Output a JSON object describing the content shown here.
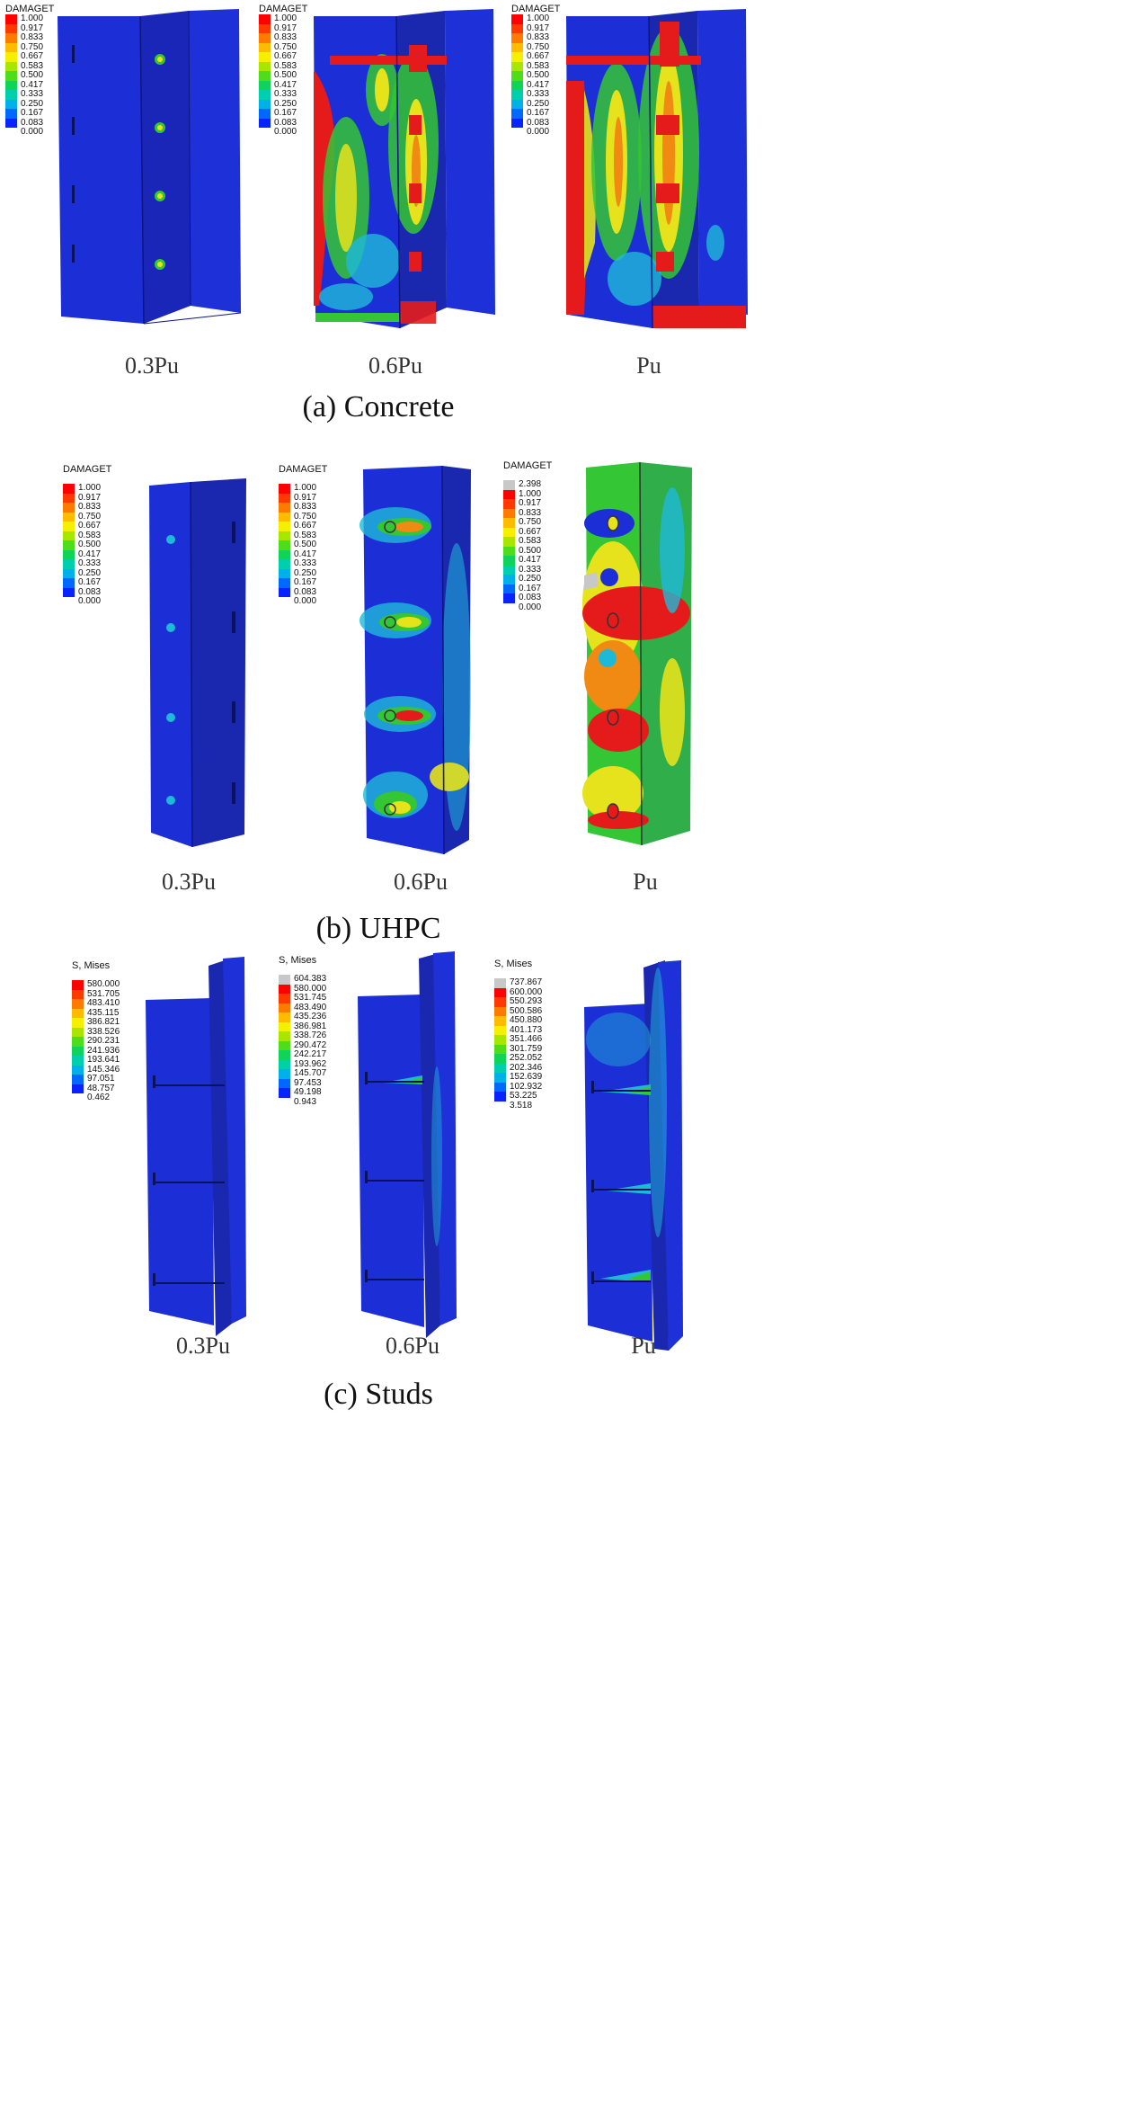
{
  "colors": {
    "blue": "#1c2fd6",
    "blue_dark": "#1a26b8",
    "blue_side": "#1a28b0",
    "cyan": "#1fb9d8",
    "green": "#34c634",
    "yellow": "#e6e21c",
    "orange": "#f08a12",
    "red": "#e51b1b",
    "grey": "#c8c8c8"
  },
  "legend_colors": [
    "#ff0000",
    "#ff3a00",
    "#ff7b00",
    "#ffbb00",
    "#f4f000",
    "#a8e600",
    "#4fdc1a",
    "#10d35a",
    "#00cfae",
    "#00b0e8",
    "#0068ff",
    "#0a22ff"
  ],
  "legend_colors_ext": [
    "#c8c8c8",
    "#ff0000",
    "#ff3a00",
    "#ff7b00",
    "#ffbb00",
    "#f4f000",
    "#a8e600",
    "#4fdc1a",
    "#10d35a",
    "#00cfae",
    "#00b0e8",
    "#0068ff",
    "#0a22ff"
  ],
  "sections": {
    "a": {
      "caption": "(a) Concrete",
      "legend_title": "DAMAGET",
      "legend_values": [
        "1.000",
        "0.917",
        "0.833",
        "0.750",
        "0.667",
        "0.583",
        "0.500",
        "0.417",
        "0.333",
        "0.250",
        "0.167",
        "0.083",
        "0.000"
      ],
      "loads": [
        "0.3Pu",
        "0.6Pu",
        "Pu"
      ]
    },
    "b": {
      "caption": "(b) UHPC",
      "legend_title": "DAMAGET",
      "legend_values": [
        "1.000",
        "0.917",
        "0.833",
        "0.750",
        "0.667",
        "0.583",
        "0.500",
        "0.417",
        "0.333",
        "0.250",
        "0.167",
        "0.083",
        "0.000"
      ],
      "legend_values_ext": [
        "2.398",
        "1.000",
        "0.917",
        "0.833",
        "0.750",
        "0.667",
        "0.583",
        "0.500",
        "0.417",
        "0.333",
        "0.250",
        "0.167",
        "0.083",
        "0.000"
      ],
      "loads": [
        "0.3Pu",
        "0.6Pu",
        "Pu"
      ]
    },
    "c": {
      "caption": "(c) Studs",
      "legend_title": "S, Mises",
      "legend_values_1": [
        "580.000",
        "531.705",
        "483.410",
        "435.115",
        "386.821",
        "338.526",
        "290.231",
        "241.936",
        "193.641",
        "145.346",
        "97.051",
        "48.757",
        "0.462"
      ],
      "legend_values_2": [
        "604.383",
        "580.000",
        "531.745",
        "483.490",
        "435.236",
        "386.981",
        "338.726",
        "290.472",
        "242.217",
        "193.962",
        "145.707",
        "97.453",
        "49.198",
        "0.943"
      ],
      "legend_values_3": [
        "737.867",
        "600.000",
        "550.293",
        "500.586",
        "450.880",
        "401.173",
        "351.466",
        "301.759",
        "252.052",
        "202.346",
        "152.639",
        "102.932",
        "53.225",
        "3.518"
      ],
      "loads": [
        "0.3Pu",
        "0.6Pu",
        "Pu"
      ]
    }
  }
}
